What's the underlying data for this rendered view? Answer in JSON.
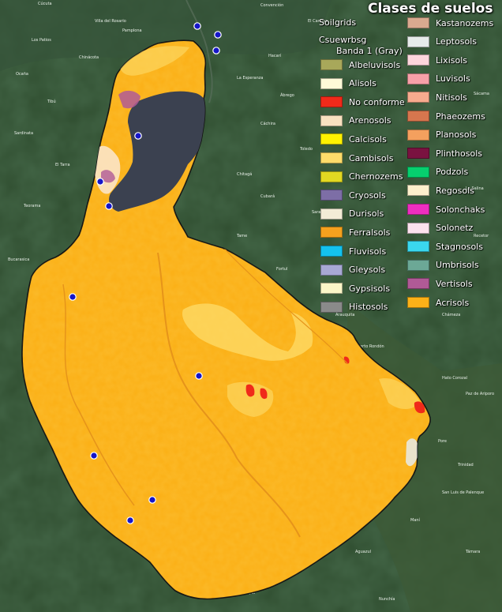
{
  "map": {
    "title": "Clases de suelos",
    "layer_group": "Soilgrids",
    "layer_name": "Csuewrbsg",
    "band": "Banda 1 (Gray)",
    "colors": {
      "terrain": "#2f4d2f",
      "basin_main": "#fbb118",
      "histosol_area": "#3b4150",
      "outline": "#111111",
      "stations": "#1616c8"
    },
    "towns": [
      "Cúcuta",
      "Villa del Rosario",
      "Los Patios",
      "Chinácota",
      "Ocaña",
      "Pamplona",
      "Tibú",
      "Sardinata",
      "El Tarra",
      "Teorama",
      "Bucarasica",
      "Convención",
      "El Carmen",
      "Hacarí",
      "La Esperanza",
      "Ábrego",
      "Cáchira",
      "Toledo",
      "Chitagá",
      "Cubará",
      "Saravena",
      "Tame",
      "Fortul",
      "Arauquita",
      "Puerto Rondón",
      "Cravo Norte",
      "Hato Corozal",
      "Paz de Ariporo",
      "Pore",
      "Trinidad",
      "San Luis de Palenque",
      "Orocué",
      "Maní",
      "Aguazul",
      "Yopal",
      "Nunchía",
      "Támara",
      "Sácama",
      "La Salina",
      "Recetor",
      "Chámeza"
    ]
  },
  "legend": {
    "column1": [
      {
        "label": "Albeluvisols",
        "color": "#a8a85a"
      },
      {
        "label": "Alisols",
        "color": "#fffad8"
      },
      {
        "label": "No conforme",
        "color": "#f02a1a"
      },
      {
        "label": "Arenosols",
        "color": "#f8e2c0"
      },
      {
        "label": "Calcisols",
        "color": "#fff200"
      },
      {
        "label": "Cambisols",
        "color": "#fedc6a"
      },
      {
        "label": "Chernozems",
        "color": "#e2d822"
      },
      {
        "label": "Cryosols",
        "color": "#7d6ea6"
      },
      {
        "label": "Durisols",
        "color": "#f3ecd6"
      },
      {
        "label": "Ferralsols",
        "color": "#f5a11e"
      },
      {
        "label": "Fluvisols",
        "color": "#14c2ee"
      },
      {
        "label": "Gleysols",
        "color": "#a8a8d4"
      },
      {
        "label": "Gypsisols",
        "color": "#fbf6c8"
      },
      {
        "label": "Histosols",
        "color": "#8a8a8a"
      }
    ],
    "column2": [
      {
        "label": "Kastanozems",
        "color": "#d9a98f"
      },
      {
        "label": "Leptosols",
        "color": "#e6ebea"
      },
      {
        "label": "Lixisols",
        "color": "#fdd6dc"
      },
      {
        "label": "Luvisols",
        "color": "#f7a0a8"
      },
      {
        "label": "Nitisols",
        "color": "#f7ab8e"
      },
      {
        "label": "Phaeozems",
        "color": "#d6764e"
      },
      {
        "label": "Planosols",
        "color": "#f4a05e"
      },
      {
        "label": "Plinthosols",
        "color": "#7a1240"
      },
      {
        "label": "Podzols",
        "color": "#06cf6e"
      },
      {
        "label": "Regosols",
        "color": "#fdf0cc"
      },
      {
        "label": "Solonchaks",
        "color": "#ee2ec0"
      },
      {
        "label": "Solonetz",
        "color": "#fde2ee"
      },
      {
        "label": "Stagnosols",
        "color": "#3ad7ee"
      },
      {
        "label": "Umbrisols",
        "color": "#6ca896"
      },
      {
        "label": "Vertisols",
        "color": "#b05a96"
      },
      {
        "label": "Acrisols",
        "color": "#fbb118"
      }
    ]
  }
}
